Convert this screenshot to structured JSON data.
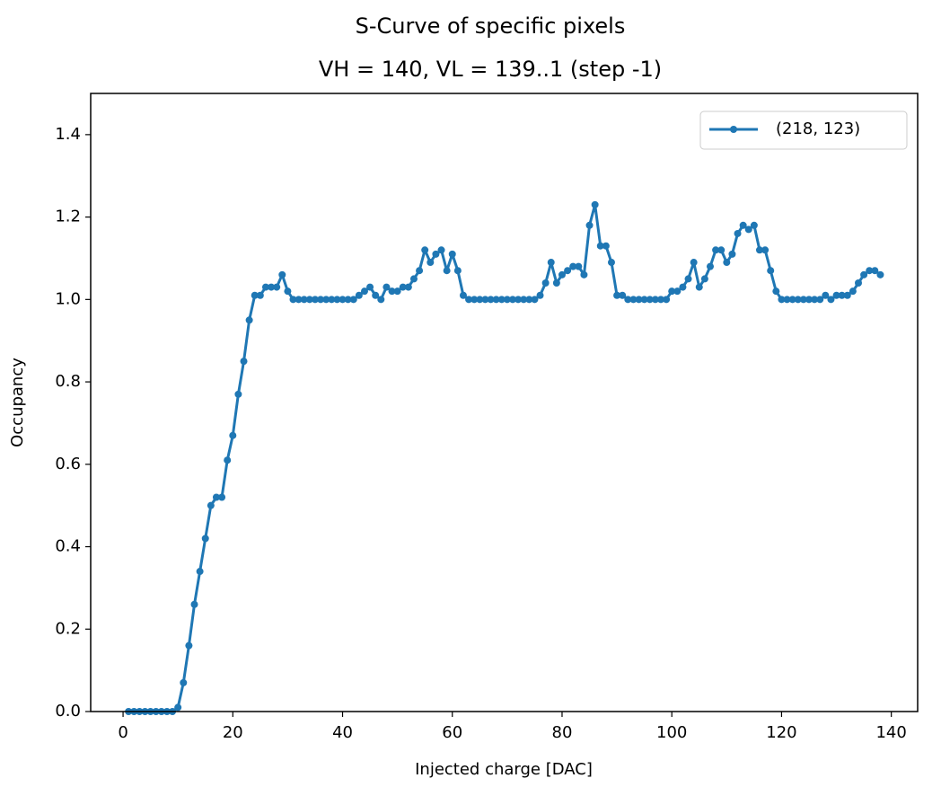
{
  "chart_data": {
    "type": "line",
    "title": "S-Curve of specific pixels",
    "subtitle": "VH = 140, VL = 139..1 (step -1)",
    "xlabel": "Injected charge [DAC]",
    "ylabel": "Occupancy",
    "x": [
      1,
      2,
      3,
      4,
      5,
      6,
      7,
      8,
      9,
      10,
      11,
      12,
      13,
      14,
      15,
      16,
      17,
      18,
      19,
      20,
      21,
      22,
      23,
      24,
      25,
      26,
      27,
      28,
      29,
      30,
      31,
      32,
      33,
      34,
      35,
      36,
      37,
      38,
      39,
      40,
      41,
      42,
      43,
      44,
      45,
      46,
      47,
      48,
      49,
      50,
      51,
      52,
      53,
      54,
      55,
      56,
      57,
      58,
      59,
      60,
      61,
      62,
      63,
      64,
      65,
      66,
      67,
      68,
      69,
      70,
      71,
      72,
      73,
      74,
      75,
      76,
      77,
      78,
      79,
      80,
      81,
      82,
      83,
      84,
      85,
      86,
      87,
      88,
      89,
      90,
      91,
      92,
      93,
      94,
      95,
      96,
      97,
      98,
      99,
      100,
      101,
      102,
      103,
      104,
      105,
      106,
      107,
      108,
      109,
      110,
      111,
      112,
      113,
      114,
      115,
      116,
      117,
      118,
      119,
      120,
      121,
      122,
      123,
      124,
      125,
      126,
      127,
      128,
      129,
      130,
      131,
      132,
      133,
      134,
      135,
      136,
      137,
      138
    ],
    "series": [
      {
        "name": "(218, 123)",
        "color": "#1f77b4",
        "values": [
          0,
          0,
          0,
          0,
          0,
          0,
          0,
          0,
          0,
          0.01,
          0.07,
          0.16,
          0.26,
          0.34,
          0.42,
          0.5,
          0.52,
          0.52,
          0.61,
          0.67,
          0.77,
          0.85,
          0.95,
          1.01,
          1.01,
          1.03,
          1.03,
          1.03,
          1.06,
          1.02,
          1,
          1,
          1,
          1,
          1,
          1,
          1,
          1,
          1,
          1,
          1,
          1,
          1.01,
          1.02,
          1.03,
          1.01,
          1,
          1.03,
          1.02,
          1.02,
          1.03,
          1.03,
          1.05,
          1.07,
          1.12,
          1.09,
          1.11,
          1.12,
          1.07,
          1.11,
          1.07,
          1.01,
          1,
          1,
          1,
          1,
          1,
          1,
          1,
          1,
          1,
          1,
          1,
          1,
          1,
          1.01,
          1.04,
          1.09,
          1.04,
          1.06,
          1.07,
          1.08,
          1.08,
          1.06,
          1.18,
          1.23,
          1.13,
          1.13,
          1.09,
          1.01,
          1.01,
          1,
          1,
          1,
          1,
          1,
          1,
          1,
          1,
          1.02,
          1.02,
          1.03,
          1.05,
          1.09,
          1.03,
          1.05,
          1.08,
          1.12,
          1.12,
          1.09,
          1.11,
          1.16,
          1.18,
          1.17,
          1.18,
          1.12,
          1.12,
          1.07,
          1.02,
          1,
          1,
          1,
          1,
          1,
          1,
          1,
          1,
          1.01,
          1,
          1.01,
          1.01,
          1.01,
          1.02,
          1.04,
          1.06,
          1.07,
          1.07,
          1.06
        ]
      }
    ],
    "xlim": [
      -5.9,
      144.8
    ],
    "ylim": [
      0,
      1.5
    ],
    "xticks": [
      0,
      20,
      40,
      60,
      80,
      100,
      120,
      140
    ],
    "yticks": [
      {
        "value": 0,
        "label": "0.0"
      },
      0.2,
      0.4,
      0.6,
      0.8,
      {
        "value": 1,
        "label": "1.0"
      },
      1.2,
      1.4
    ],
    "grid": false,
    "legend": "upper right"
  }
}
